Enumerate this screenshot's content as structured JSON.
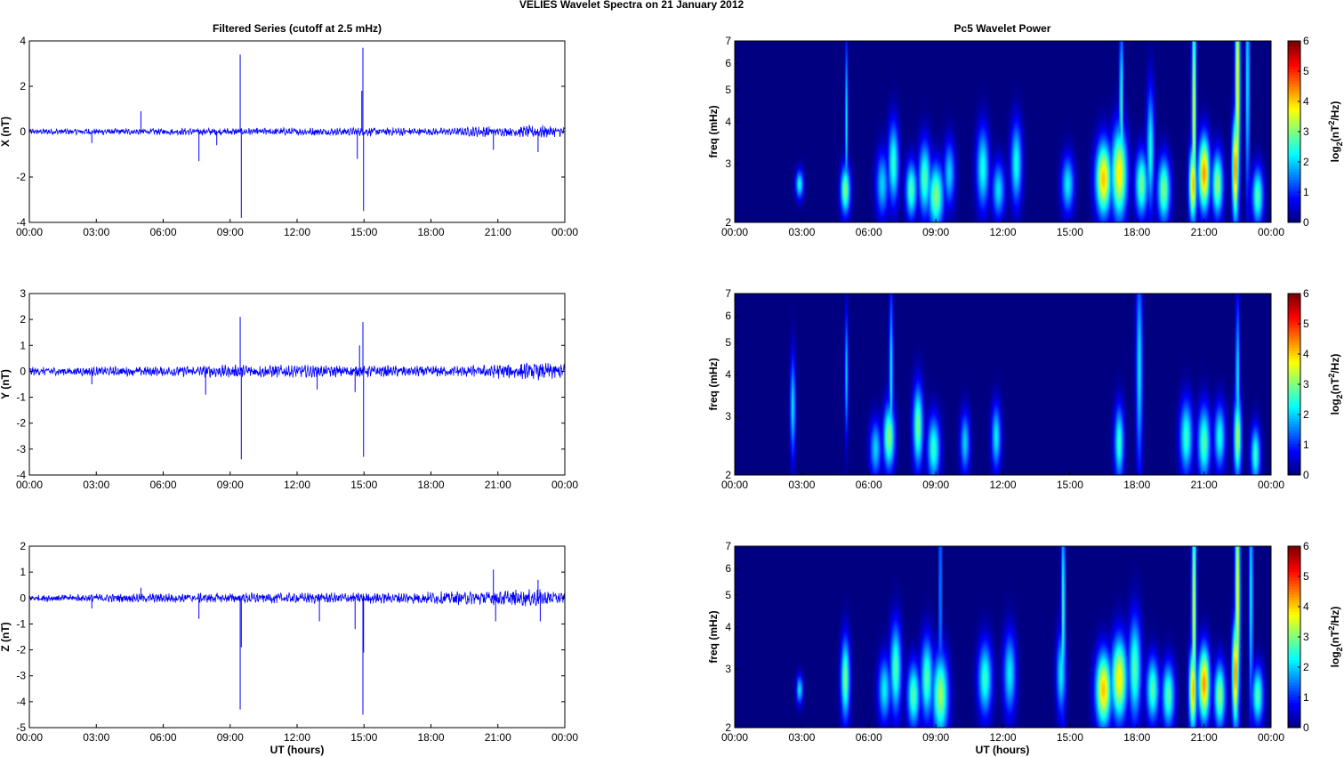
{
  "page": {
    "suptitle": "VELIES Wavelet Spectra on 21 January   2012",
    "left_column_title": "Filtered Series (cutoff at 2.5 mHz)",
    "right_column_title": "Pc5 Wavelet Power",
    "xlabel": "UT (hours)",
    "colors": {
      "trace": "#0000ff",
      "axis": "#000000",
      "background": "#ffffff"
    }
  },
  "chart_data": [
    {
      "type": "line",
      "id": "X",
      "ylabel": "X (nT)",
      "ylim": [
        -4,
        4
      ],
      "yticks": [
        -4,
        -2,
        0,
        2,
        4
      ],
      "x_ticklabels": [
        "00:00",
        "03:00",
        "06:00",
        "09:00",
        "12:00",
        "15:00",
        "18:00",
        "21:00",
        "00:00"
      ],
      "baseline_noise": 0.1,
      "envelope": [
        [
          0,
          1
        ],
        [
          16.5,
          1.4
        ],
        [
          19,
          1.2
        ],
        [
          20.5,
          2
        ],
        [
          21,
          1.3
        ],
        [
          22.8,
          2.2
        ],
        [
          24,
          1.6
        ]
      ],
      "spikes": [
        [
          2.8,
          -0.5
        ],
        [
          5,
          0.9
        ],
        [
          7.6,
          -1.3
        ],
        [
          8.4,
          -0.6
        ],
        [
          9.45,
          3.4
        ],
        [
          9.5,
          -3.8
        ],
        [
          14.7,
          -1.2
        ],
        [
          14.95,
          3.7
        ],
        [
          14.98,
          -3.5
        ],
        [
          14.9,
          1.8
        ],
        [
          20.8,
          -0.8
        ],
        [
          22.8,
          -0.9
        ]
      ]
    },
    {
      "type": "line",
      "id": "Y",
      "ylabel": "Y (nT)",
      "ylim": [
        -4,
        3
      ],
      "yticks": [
        -4,
        -3,
        -2,
        -1,
        0,
        1,
        2,
        3
      ],
      "x_ticklabels": [
        "00:00",
        "03:00",
        "06:00",
        "09:00",
        "12:00",
        "15:00",
        "18:00",
        "21:00",
        "00:00"
      ],
      "baseline_noise": 0.12,
      "envelope": [
        [
          0,
          1
        ],
        [
          6,
          1.2
        ],
        [
          9,
          1.6
        ],
        [
          15,
          1.4
        ],
        [
          19,
          1.3
        ],
        [
          22.8,
          2.2
        ],
        [
          24,
          1.8
        ]
      ],
      "spikes": [
        [
          2.8,
          -0.5
        ],
        [
          7.9,
          -0.9
        ],
        [
          9.45,
          2.1
        ],
        [
          9.5,
          -3.4
        ],
        [
          12.9,
          -0.7
        ],
        [
          14.6,
          -0.8
        ],
        [
          14.95,
          1.9
        ],
        [
          14.98,
          -3.3
        ],
        [
          14.8,
          1.0
        ],
        [
          24,
          -0.5
        ]
      ]
    },
    {
      "type": "line",
      "id": "Z",
      "ylabel": "Z (nT)",
      "ylim": [
        -5,
        2
      ],
      "yticks": [
        -5,
        -4,
        -3,
        -2,
        -1,
        0,
        1,
        2
      ],
      "x_ticklabels": [
        "00:00",
        "03:00",
        "06:00",
        "09:00",
        "12:00",
        "15:00",
        "18:00",
        "21:00",
        "00:00"
      ],
      "baseline_noise": 0.1,
      "envelope": [
        [
          0,
          1
        ],
        [
          8,
          1.5
        ],
        [
          10,
          1.5
        ],
        [
          16.5,
          1.6
        ],
        [
          18,
          1.8
        ],
        [
          20.5,
          2.2
        ],
        [
          22.8,
          2.5
        ],
        [
          24,
          1.6
        ]
      ],
      "spikes": [
        [
          2.8,
          -0.4
        ],
        [
          5,
          0.4
        ],
        [
          7.6,
          -0.8
        ],
        [
          9.45,
          -4.3
        ],
        [
          9.5,
          -1.9
        ],
        [
          13,
          -0.9
        ],
        [
          14.6,
          -1.2
        ],
        [
          14.95,
          -4.5
        ],
        [
          14.98,
          -2.1
        ],
        [
          20.8,
          1.1
        ],
        [
          20.9,
          -0.9
        ],
        [
          22.8,
          0.7
        ],
        [
          22.9,
          -0.9
        ]
      ]
    },
    {
      "type": "heatmap",
      "id": "X_power",
      "ylabel": "freq (mHz)",
      "yscale": "log",
      "ylim": [
        2,
        7
      ],
      "yticks": [
        2,
        3,
        4,
        5,
        6,
        7
      ],
      "x_ticklabels": [
        "00:00",
        "03:00",
        "06:00",
        "09:00",
        "12:00",
        "15:00",
        "18:00",
        "21:00",
        "00:00"
      ],
      "colorbar": {
        "label": "log2(nT^2/Hz)",
        "label_main": "log",
        "label_sub": "2",
        "label_rest": "(nT",
        "label_sup": "2",
        "label_end": "/Hz)",
        "range": [
          0,
          6
        ],
        "ticks": [
          0,
          1,
          2,
          3,
          4,
          5,
          6
        ]
      },
      "blobs": [
        [
          2.9,
          2.6,
          0.12,
          0.07,
          2.6
        ],
        [
          4.95,
          2.5,
          0.15,
          0.12,
          3.3
        ],
        [
          5.0,
          4.0,
          0.04,
          0.4,
          2.4
        ],
        [
          6.6,
          2.6,
          0.2,
          0.16,
          2.2
        ],
        [
          7.1,
          3.0,
          0.17,
          0.2,
          2.8
        ],
        [
          7.9,
          2.5,
          0.18,
          0.14,
          3.0
        ],
        [
          8.5,
          2.7,
          0.2,
          0.18,
          3.0
        ],
        [
          9.0,
          2.4,
          0.25,
          0.16,
          3.3
        ],
        [
          9.6,
          2.8,
          0.18,
          0.16,
          2.2
        ],
        [
          11.1,
          2.9,
          0.2,
          0.2,
          2.6
        ],
        [
          11.8,
          2.5,
          0.2,
          0.14,
          2.3
        ],
        [
          12.6,
          3.0,
          0.18,
          0.2,
          2.6
        ],
        [
          14.9,
          2.6,
          0.2,
          0.14,
          2.4
        ],
        [
          16.5,
          2.7,
          0.25,
          0.18,
          4.5
        ],
        [
          17.2,
          2.8,
          0.25,
          0.22,
          4.2
        ],
        [
          17.3,
          4.5,
          0.06,
          0.4,
          3.0
        ],
        [
          18.2,
          2.6,
          0.2,
          0.16,
          3.2
        ],
        [
          18.6,
          3.3,
          0.12,
          0.3,
          2.6
        ],
        [
          19.2,
          2.5,
          0.2,
          0.16,
          3.3
        ],
        [
          20.5,
          2.6,
          0.12,
          0.18,
          4.6
        ],
        [
          20.55,
          4.3,
          0.07,
          0.6,
          4.0
        ],
        [
          21.0,
          2.8,
          0.18,
          0.18,
          4.8
        ],
        [
          21.6,
          2.6,
          0.18,
          0.16,
          3.4
        ],
        [
          22.4,
          2.9,
          0.1,
          0.25,
          5.0
        ],
        [
          22.5,
          5.2,
          0.08,
          0.6,
          4.3
        ],
        [
          22.95,
          5.3,
          0.06,
          0.6,
          2.6
        ],
        [
          23.4,
          2.4,
          0.18,
          0.14,
          3.0
        ]
      ]
    },
    {
      "type": "heatmap",
      "id": "Y_power",
      "ylabel": "freq (mHz)",
      "yscale": "log",
      "ylim": [
        2,
        7
      ],
      "yticks": [
        2,
        3,
        4,
        5,
        6,
        7
      ],
      "x_ticklabels": [
        "00:00",
        "03:00",
        "06:00",
        "09:00",
        "12:00",
        "15:00",
        "18:00",
        "21:00",
        "00:00"
      ],
      "colorbar": {
        "label": "log2(nT^2/Hz)",
        "label_main": "log",
        "label_sub": "2",
        "label_rest": "(nT",
        "label_sup": "2",
        "label_end": "/Hz)",
        "range": [
          0,
          6
        ],
        "ticks": [
          0,
          1,
          2,
          3,
          4,
          5,
          6
        ]
      },
      "blobs": [
        [
          2.6,
          3.2,
          0.08,
          0.25,
          2.4
        ],
        [
          5.0,
          4.0,
          0.05,
          0.3,
          2.2
        ],
        [
          6.3,
          2.4,
          0.18,
          0.14,
          2.2
        ],
        [
          6.9,
          2.6,
          0.18,
          0.16,
          3.4
        ],
        [
          7.0,
          4.0,
          0.06,
          0.4,
          2.6
        ],
        [
          8.2,
          2.8,
          0.16,
          0.2,
          3.2
        ],
        [
          8.9,
          2.4,
          0.2,
          0.16,
          2.8
        ],
        [
          10.3,
          2.5,
          0.15,
          0.15,
          2.2
        ],
        [
          11.7,
          2.6,
          0.15,
          0.16,
          2.4
        ],
        [
          17.2,
          2.5,
          0.15,
          0.18,
          2.8
        ],
        [
          18.1,
          4.2,
          0.1,
          0.5,
          2.4
        ],
        [
          20.2,
          2.6,
          0.2,
          0.18,
          2.8
        ],
        [
          21.0,
          2.5,
          0.2,
          0.18,
          3.0
        ],
        [
          21.7,
          2.6,
          0.18,
          0.16,
          2.6
        ],
        [
          22.5,
          2.6,
          0.12,
          0.2,
          3.6
        ],
        [
          22.5,
          3.8,
          0.06,
          0.4,
          2.6
        ],
        [
          23.3,
          2.3,
          0.15,
          0.14,
          2.8
        ]
      ]
    },
    {
      "type": "heatmap",
      "id": "Z_power",
      "ylabel": "freq (mHz)",
      "yscale": "log",
      "ylim": [
        2,
        7
      ],
      "yticks": [
        2,
        3,
        4,
        5,
        6,
        7
      ],
      "x_ticklabels": [
        "00:00",
        "03:00",
        "06:00",
        "09:00",
        "12:00",
        "15:00",
        "18:00",
        "21:00",
        "00:00"
      ],
      "colorbar": {
        "label": "log2(nT^2/Hz)",
        "label_main": "log",
        "label_sub": "2",
        "label_rest": "(nT",
        "label_sup": "2",
        "label_end": "/Hz)",
        "range": [
          0,
          6
        ],
        "ticks": [
          0,
          1,
          2,
          3,
          4,
          5,
          6
        ]
      },
      "blobs": [
        [
          2.9,
          2.6,
          0.1,
          0.07,
          2.4
        ],
        [
          4.95,
          2.8,
          0.14,
          0.2,
          3.2
        ],
        [
          6.7,
          2.6,
          0.2,
          0.16,
          2.4
        ],
        [
          7.2,
          3.0,
          0.18,
          0.22,
          3.0
        ],
        [
          8.0,
          2.5,
          0.2,
          0.16,
          3.0
        ],
        [
          8.6,
          2.8,
          0.2,
          0.2,
          3.0
        ],
        [
          9.2,
          2.5,
          0.25,
          0.2,
          3.5
        ],
        [
          9.2,
          5.0,
          0.04,
          0.7,
          2.4
        ],
        [
          11.2,
          2.8,
          0.22,
          0.18,
          2.8
        ],
        [
          12.3,
          2.9,
          0.2,
          0.2,
          2.4
        ],
        [
          14.6,
          2.9,
          0.15,
          0.2,
          2.4
        ],
        [
          14.7,
          4.5,
          0.06,
          0.5,
          3.0
        ],
        [
          16.5,
          2.6,
          0.25,
          0.18,
          4.5
        ],
        [
          17.2,
          2.8,
          0.25,
          0.2,
          4.2
        ],
        [
          17.9,
          3.0,
          0.2,
          0.25,
          3.0
        ],
        [
          18.7,
          2.6,
          0.2,
          0.16,
          3.0
        ],
        [
          19.4,
          2.5,
          0.2,
          0.16,
          3.0
        ],
        [
          20.5,
          2.6,
          0.12,
          0.2,
          4.6
        ],
        [
          20.55,
          4.5,
          0.07,
          0.6,
          4.0
        ],
        [
          21.0,
          2.7,
          0.18,
          0.18,
          4.8
        ],
        [
          21.7,
          2.5,
          0.18,
          0.16,
          3.4
        ],
        [
          22.4,
          2.9,
          0.1,
          0.25,
          5.0
        ],
        [
          22.5,
          5.0,
          0.08,
          0.6,
          4.2
        ],
        [
          23.1,
          5.0,
          0.06,
          0.6,
          2.6
        ],
        [
          23.4,
          2.5,
          0.18,
          0.14,
          3.0
        ]
      ]
    }
  ]
}
